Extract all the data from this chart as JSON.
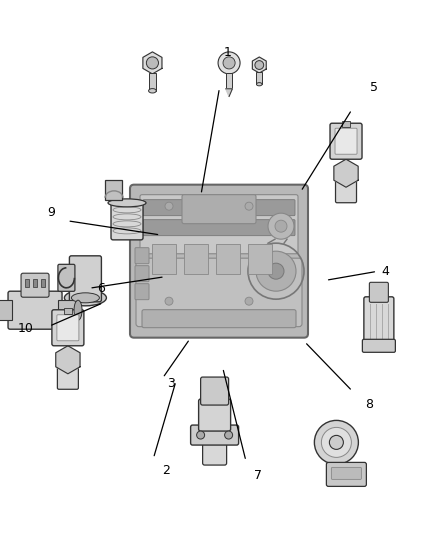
{
  "background_color": "#ffffff",
  "fig_width": 4.38,
  "fig_height": 5.33,
  "dpi": 100,
  "line_color": "#000000",
  "text_color": "#000000",
  "edge_color": "#333333",
  "light_gray": "#c8c8c8",
  "mid_gray": "#999999",
  "dark_gray": "#555555",
  "numbers": [
    {
      "id": "1",
      "nx": 0.52,
      "ny": 0.098
    },
    {
      "id": "2",
      "nx": 0.378,
      "ny": 0.882
    },
    {
      "id": "3",
      "nx": 0.39,
      "ny": 0.72
    },
    {
      "id": "4",
      "nx": 0.88,
      "ny": 0.51
    },
    {
      "id": "5",
      "nx": 0.855,
      "ny": 0.165
    },
    {
      "id": "6",
      "nx": 0.23,
      "ny": 0.542
    },
    {
      "id": "7",
      "nx": 0.59,
      "ny": 0.892
    },
    {
      "id": "8",
      "nx": 0.842,
      "ny": 0.758
    },
    {
      "id": "9",
      "nx": 0.118,
      "ny": 0.398
    },
    {
      "id": "10",
      "nx": 0.058,
      "ny": 0.616
    }
  ],
  "lines": [
    [
      0.5,
      0.17,
      0.46,
      0.36
    ],
    [
      0.352,
      0.855,
      0.4,
      0.72
    ],
    [
      0.375,
      0.705,
      0.43,
      0.64
    ],
    [
      0.855,
      0.51,
      0.75,
      0.525
    ],
    [
      0.8,
      0.21,
      0.69,
      0.355
    ],
    [
      0.21,
      0.54,
      0.37,
      0.52
    ],
    [
      0.56,
      0.86,
      0.51,
      0.695
    ],
    [
      0.8,
      0.73,
      0.7,
      0.645
    ],
    [
      0.16,
      0.415,
      0.36,
      0.44
    ],
    [
      0.118,
      0.61,
      0.23,
      0.57
    ]
  ]
}
